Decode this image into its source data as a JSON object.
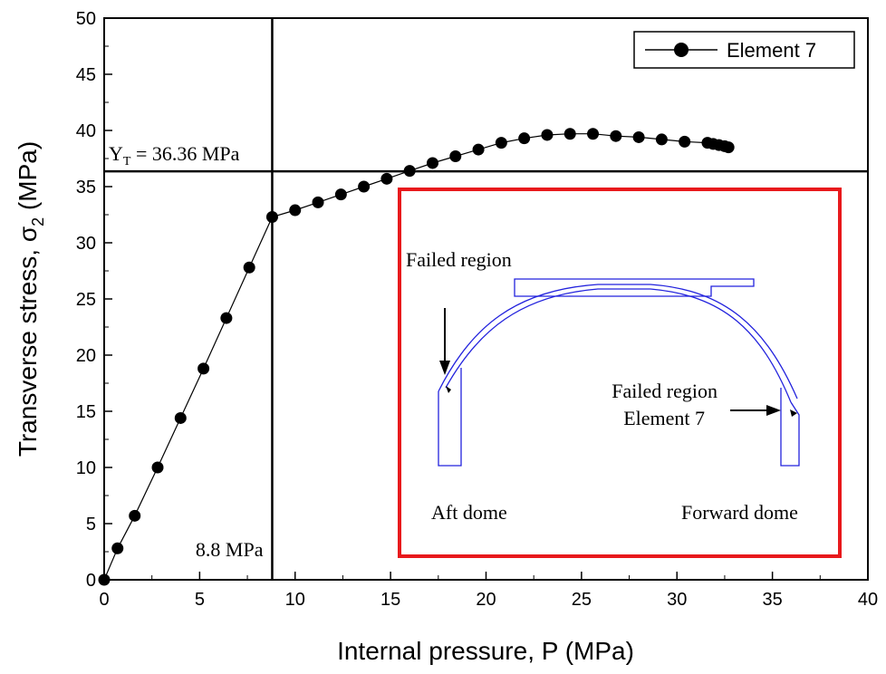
{
  "chart_data": {
    "type": "scatter",
    "title": "",
    "xlabel": "Internal pressure, P (MPa)",
    "ylabel_main": "Transverse stress, σ",
    "ylabel_sub": "2",
    "ylabel_unit": " (MPa)",
    "xlim": [
      0,
      40
    ],
    "ylim": [
      0,
      50
    ],
    "x_ticks": [
      0,
      5,
      10,
      15,
      20,
      25,
      30,
      35,
      40
    ],
    "y_ticks": [
      0,
      5,
      10,
      15,
      20,
      25,
      30,
      35,
      40,
      45,
      50
    ],
    "grid": false,
    "legend_position": "top-right",
    "series": [
      {
        "name": "Element 7",
        "style": "line-with-filled-circles",
        "color": "#000000",
        "x": [
          0,
          0.7,
          1.6,
          2.8,
          4.0,
          5.2,
          6.4,
          7.6,
          8.8,
          10.0,
          11.2,
          12.4,
          13.6,
          14.8,
          16.0,
          17.2,
          18.4,
          19.6,
          20.8,
          22.0,
          23.2,
          24.4,
          25.6,
          26.8,
          28.0,
          29.2,
          30.4,
          31.6,
          31.9,
          32.2,
          32.5,
          32.7
        ],
        "y": [
          0,
          2.8,
          5.7,
          10.0,
          14.4,
          18.8,
          23.3,
          27.8,
          32.3,
          32.9,
          33.6,
          34.3,
          35.0,
          35.7,
          36.4,
          37.1,
          37.7,
          38.3,
          38.9,
          39.3,
          39.6,
          39.7,
          39.7,
          39.5,
          39.4,
          39.2,
          39.0,
          38.9,
          38.8,
          38.7,
          38.6,
          38.5
        ]
      }
    ],
    "reference_lines": {
      "horizontal_y": 36.36,
      "horizontal_label_main": "Y",
      "horizontal_label_sub": "T",
      "horizontal_label_rest": " = 36.36 MPa",
      "vertical_x": 8.8,
      "vertical_label": "8.8 MPa"
    },
    "inset": {
      "border_color": "#e8191c",
      "drawing_color": "#2222dd",
      "arrow_color": "#000000",
      "labels": {
        "failed_region_top": "Failed region",
        "failed_region_right": "Failed region",
        "element_label": "Element 7",
        "aft": "Aft dome",
        "forward": "Forward dome"
      }
    }
  }
}
